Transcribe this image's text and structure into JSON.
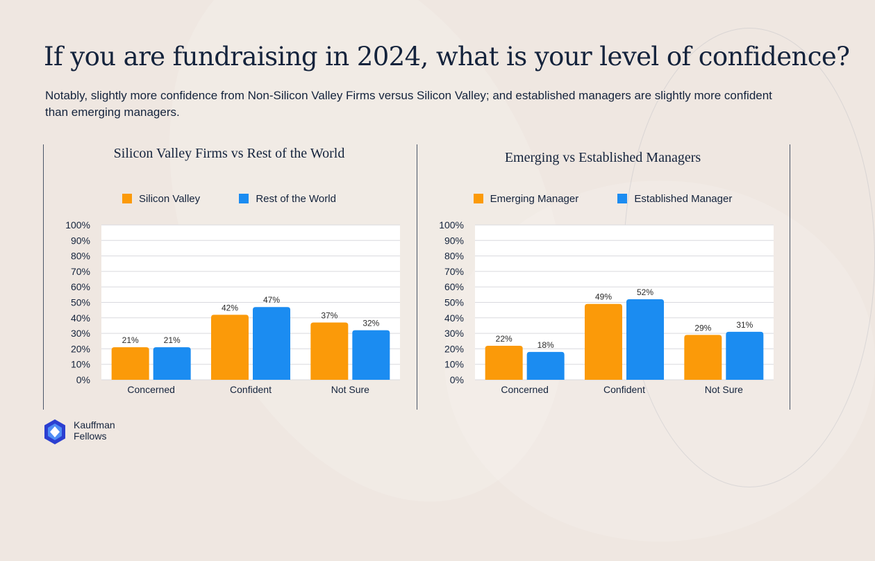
{
  "title": "If you are fundraising in 2024, what is your level of confidence?",
  "subtitle": "Notably, slightly more confidence from Non-Silicon Valley Firms versus Silicon Valley; and established managers are slightly more confident than emerging managers.",
  "logo": {
    "text": "Kauffman\nFellows",
    "color": "#2b3fd1",
    "icon": "kauffman-fellows-logo-icon"
  },
  "chart_data": [
    {
      "type": "bar",
      "title": "Silicon Valley Firms vs Rest of the World",
      "categories": [
        "Concerned",
        "Confident",
        "Not Sure"
      ],
      "series": [
        {
          "name": "Silicon Valley",
          "color": "#fb9a09",
          "values": [
            21,
            42,
            37
          ],
          "labels": [
            "21%",
            "42%",
            "37%"
          ]
        },
        {
          "name": "Rest of the World",
          "color": "#1b8cf1",
          "values": [
            21,
            47,
            32
          ],
          "labels": [
            "21%",
            "47%",
            "32%"
          ]
        }
      ],
      "yticks": [
        "0%",
        "10%",
        "20%",
        "30%",
        "40%",
        "50%",
        "60%",
        "70%",
        "80%",
        "90%",
        "100%"
      ],
      "ylim": [
        0,
        100
      ],
      "grid": true,
      "legend": "top"
    },
    {
      "type": "bar",
      "title": "Emerging vs Established Managers",
      "categories": [
        "Concerned",
        "Confident",
        "Not Sure"
      ],
      "series": [
        {
          "name": "Emerging Manager",
          "color": "#fb9a09",
          "values": [
            22,
            49,
            29
          ],
          "labels": [
            "22%",
            "49%",
            "29%"
          ]
        },
        {
          "name": "Established Manager",
          "color": "#1b8cf1",
          "values": [
            18,
            52,
            31
          ],
          "labels": [
            "18%",
            "52%",
            "31%"
          ]
        }
      ],
      "yticks": [
        "0%",
        "10%",
        "20%",
        "30%",
        "40%",
        "50%",
        "60%",
        "70%",
        "80%",
        "90%",
        "100%"
      ],
      "ylim": [
        0,
        100
      ],
      "grid": true,
      "legend": "top"
    }
  ]
}
